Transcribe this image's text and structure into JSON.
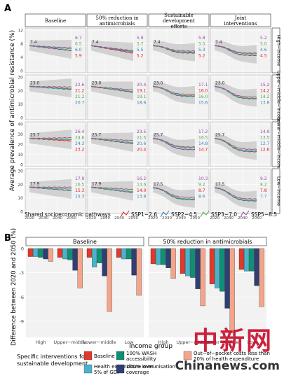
{
  "panel_a": {
    "letter": "A",
    "y_label": "Average prevalence of antimicrobial resistance (%)",
    "columns": [
      "Baseline",
      "50% reduction in antimicrobials",
      "Sustainable development efforts",
      "Joint interventions"
    ],
    "rows": [
      "High−income",
      "Upper−middle−income",
      "Lower−middle−income",
      "Low−income"
    ],
    "x_ticks": [
      "2020",
      "2030",
      "2040",
      "2050"
    ],
    "legend_title": "Shared socioeconomic pathways",
    "legend": [
      {
        "name": "SSP1−2.6",
        "color": "#e41a1c"
      },
      {
        "name": "SSP2−4.5",
        "color": "#377eb8"
      },
      {
        "name": "SSP3−7.0",
        "color": "#4daf4a"
      },
      {
        "name": "SSP5−8.5",
        "color": "#984ea3"
      }
    ]
  },
  "panel_b": {
    "letter": "B",
    "y_label": "Difference between 2020 and 2050 (%)",
    "x_label": "Income group",
    "facets": [
      "Baseline",
      "50% reduction in antimicrobials"
    ],
    "groups": [
      "High",
      "Upper−middle",
      "Lower−middle",
      "Low"
    ],
    "legend_title": "Specific interventions for sustainable development",
    "legend": [
      {
        "name": "Baseline",
        "color": "#e0392b"
      },
      {
        "name": "Health expenditure over 5% of GDP",
        "color": "#4bb3c9"
      },
      {
        "name": "100% WASH accessibility",
        "color": "#0f8f73"
      },
      {
        "name": "100% immunisation coverage",
        "color": "#2f3f73"
      },
      {
        "name": "Out−of−pocket costs less than 20% of health expenditure",
        "color": "#f2a58a"
      }
    ]
  },
  "watermark": {
    "cn": "中新网",
    "en": "Chinanews.com"
  },
  "chart_data": [
    {
      "type": "line",
      "title": "",
      "x": [
        2020,
        2050
      ],
      "xlabel": "",
      "ylabel": "Average prevalence of antimicrobial resistance (%)",
      "facet_columns": [
        "Baseline",
        "50% reduction in antimicrobials",
        "Sustainable development efforts",
        "Joint interventions"
      ],
      "facet_rows": [
        "High−income",
        "Upper−middle−income",
        "Lower−middle−income",
        "Low−income"
      ],
      "series_names": [
        "SSP1−2.6",
        "SSP2−4.5",
        "SSP3−7.0",
        "SSP5−8.5"
      ],
      "rows": [
        {
          "row": "High−income",
          "ylim": [
            0,
            12
          ],
          "yticks": [
            0,
            4,
            8,
            12
          ],
          "start_labels": [
            "7.4",
            "7.4",
            "7.4",
            "7.4"
          ],
          "end_values": [
            [
              5.9,
              6.0,
              6.5,
              6.7
            ],
            [
              5.2,
              5.5,
              5.7,
              5.9
            ],
            [
              5.2,
              5.3,
              5.5,
              5.8
            ],
            [
              4.5,
              4.6,
              5.0,
              5.2
            ]
          ]
        },
        {
          "row": "Upper−middle−income",
          "ylim": [
            0,
            30
          ],
          "yticks": [
            0,
            10,
            20,
            30
          ],
          "start_labels": [
            "23.0",
            "23.0",
            "23.0",
            "23.0"
          ],
          "end_values": [
            [
              21.2,
              20.7,
              21.2,
              22.6
            ],
            [
              19.1,
              18.6,
              19.1,
              20.4
            ],
            [
              16.0,
              15.6,
              16.0,
              17.1
            ],
            [
              14.2,
              13.8,
              14.2,
              15.2
            ]
          ]
        },
        {
          "row": "Lower−middle−income",
          "ylim": [
            0,
            40
          ],
          "yticks": [
            0,
            10,
            20,
            30,
            40
          ],
          "start_labels": [
            "25.7",
            "25.7",
            "25.7",
            "25.7"
          ],
          "end_values": [
            [
              23.2,
              24.3,
              24.6,
              26.4
            ],
            [
              20.4,
              20.6,
              21.5,
              23.5
            ],
            [
              14.7,
              14.8,
              16.5,
              17.2
            ],
            [
              12.6,
              12.7,
              13.5,
              14.9
            ]
          ]
        },
        {
          "row": "Low−income",
          "ylim": [
            0,
            30
          ],
          "yticks": [
            0,
            10,
            20,
            30
          ],
          "start_labels": [
            "17.9",
            "17.9",
            "17.5",
            "17.5"
          ],
          "end_values": [
            [
              15.3,
              15.3,
              16.5,
              17.9
            ],
            [
              14.0,
              13.8,
              14.6,
              16.2
            ],
            [
              8.7,
              8.6,
              9.2,
              10.3
            ],
            [
              7.8,
              7.7,
              8.2,
              9.2
            ]
          ]
        }
      ]
    },
    {
      "type": "bar",
      "title": "",
      "xlabel": "Income group",
      "ylabel": "Difference between 2020 and 2050 (%)",
      "ylim": [
        -11,
        0
      ],
      "yticks": [
        0,
        -3,
        -6,
        -9
      ],
      "categories": [
        "High",
        "Upper−middle",
        "Lower−middle",
        "Low"
      ],
      "facets": [
        {
          "name": "Baseline",
          "series": [
            {
              "name": "Baseline",
              "values": [
                -1.0,
                -1.1,
                -1.1,
                -1.1
              ]
            },
            {
              "name": "Health expenditure over 5% of GDP",
              "values": [
                -1.0,
                -1.3,
                -2.3,
                -1.3
              ]
            },
            {
              "name": "100% WASH accessibility",
              "values": [
                -1.1,
                -1.4,
                -1.8,
                -1.3
              ]
            },
            {
              "name": "100% immunisation coverage",
              "values": [
                -1.3,
                -2.7,
                -3.4,
                -3.3
              ]
            },
            {
              "name": "Out−of−pocket costs less than 20% of health expenditure",
              "values": [
                -1.6,
                -4.9,
                -7.8,
                -5.8
              ]
            }
          ]
        },
        {
          "name": "50% reduction in antimicrobials",
          "series": [
            {
              "name": "Baseline",
              "values": [
                -1.9,
                -3.1,
                -4.4,
                -2.6
              ]
            },
            {
              "name": "Health expenditure over 5% of GDP",
              "values": [
                -2.0,
                -3.4,
                -4.9,
                -2.8
              ]
            },
            {
              "name": "100% WASH accessibility",
              "values": [
                -2.0,
                -3.6,
                -5.3,
                -2.8
              ]
            },
            {
              "name": "100% immunisation coverage",
              "values": [
                -2.4,
                -5.0,
                -7.4,
                -4.6
              ]
            },
            {
              "name": "Out−of−pocket costs less than 20% of health expenditure",
              "values": [
                -3.7,
                -7.1,
                -10.4,
                -7.2
              ]
            }
          ]
        }
      ]
    }
  ]
}
